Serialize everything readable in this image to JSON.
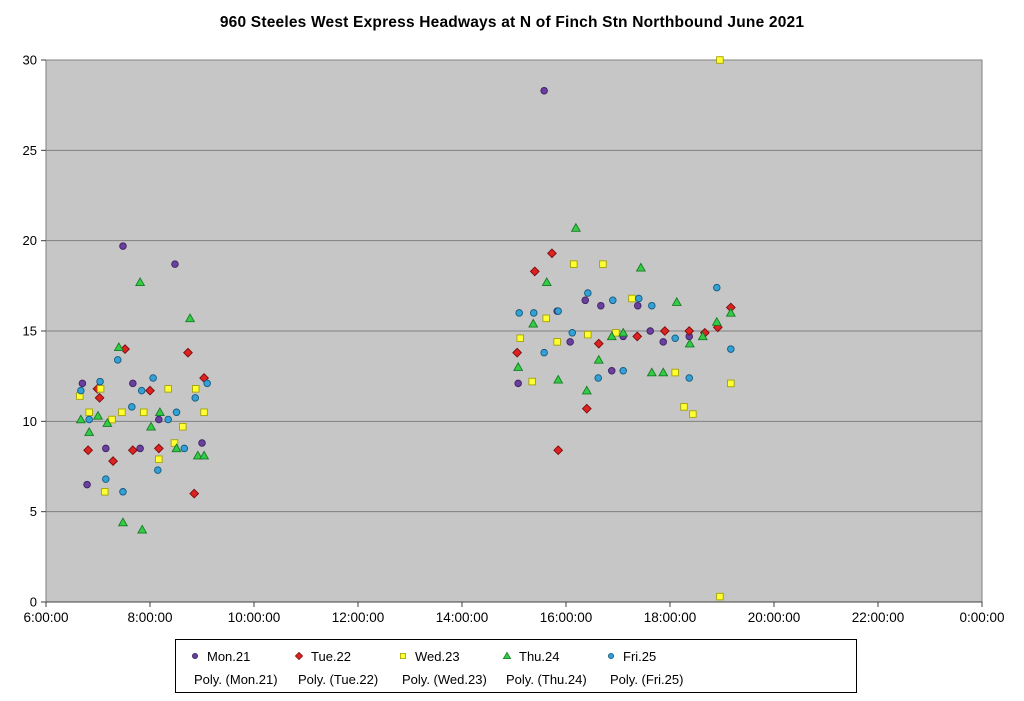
{
  "title": "960 Steeles West Express Headways at N of Finch Stn Northbound June 2021",
  "chart_data": {
    "type": "scatter",
    "title": "960 Steeles West Express Headways at N of Finch Stn Northbound June 2021",
    "xlabel": "",
    "ylabel": "",
    "x_axis": {
      "unit": "time of day",
      "min_hour": 6,
      "max_hour": 24,
      "tick_hours": [
        6,
        8,
        10,
        12,
        14,
        16,
        18,
        20,
        22,
        24
      ],
      "tick_labels": [
        "6:00:00",
        "8:00:00",
        "10:00:00",
        "12:00:00",
        "14:00:00",
        "16:00:00",
        "18:00:00",
        "20:00:00",
        "22:00:00",
        "0:00:00"
      ]
    },
    "y_axis": {
      "min": 0,
      "max": 30,
      "ticks": [
        0,
        5,
        10,
        15,
        20,
        25,
        30
      ]
    },
    "colors": {
      "plot_background": "#c6c6c6",
      "grid": "#808080",
      "border": "#808080",
      "title_text": "#000000",
      "axis_text": "#000000"
    },
    "series": [
      {
        "name": "Mon.21",
        "color": "#6a3fa0",
        "edge": "#3c2260",
        "marker": "circle",
        "points": [
          [
            6.7,
            12.1
          ],
          [
            6.79,
            6.5
          ],
          [
            7.15,
            8.5
          ],
          [
            7.48,
            19.7
          ],
          [
            7.67,
            12.1
          ],
          [
            7.81,
            8.5
          ],
          [
            8.17,
            10.1
          ],
          [
            8.48,
            18.7
          ],
          [
            9.0,
            8.8
          ],
          [
            15.08,
            12.1
          ],
          [
            15.58,
            28.3
          ],
          [
            15.83,
            16.1
          ],
          [
            16.08,
            14.4
          ],
          [
            16.37,
            16.7
          ],
          [
            16.67,
            16.4
          ],
          [
            16.88,
            12.8
          ],
          [
            17.1,
            14.7
          ],
          [
            17.38,
            16.4
          ],
          [
            17.62,
            15.0
          ],
          [
            17.87,
            14.4
          ],
          [
            18.37,
            14.7
          ]
        ]
      },
      {
        "name": "Tue.22",
        "color": "#dd2222",
        "edge": "#7a0c0c",
        "marker": "diamond",
        "points": [
          [
            6.81,
            8.4
          ],
          [
            6.99,
            11.8
          ],
          [
            7.03,
            11.3
          ],
          [
            7.29,
            7.8
          ],
          [
            7.52,
            14.0
          ],
          [
            7.67,
            8.4
          ],
          [
            8.0,
            11.7
          ],
          [
            8.17,
            8.5
          ],
          [
            8.73,
            13.8
          ],
          [
            8.85,
            6.0
          ],
          [
            9.04,
            12.4
          ],
          [
            15.06,
            13.8
          ],
          [
            15.4,
            18.3
          ],
          [
            15.73,
            19.3
          ],
          [
            15.85,
            8.4
          ],
          [
            16.4,
            10.7
          ],
          [
            16.63,
            14.3
          ],
          [
            17.37,
            14.7
          ],
          [
            17.9,
            15.0
          ],
          [
            18.37,
            15.0
          ],
          [
            18.67,
            14.9
          ],
          [
            18.92,
            15.2
          ],
          [
            19.17,
            16.3
          ]
        ]
      },
      {
        "name": "Wed.23",
        "color": "#ffff33",
        "edge": "#a3a300",
        "marker": "square",
        "points": [
          [
            6.65,
            11.4
          ],
          [
            6.83,
            10.5
          ],
          [
            7.05,
            11.8
          ],
          [
            7.13,
            6.1
          ],
          [
            7.27,
            10.1
          ],
          [
            7.46,
            10.5
          ],
          [
            7.88,
            10.5
          ],
          [
            8.17,
            7.9
          ],
          [
            8.35,
            11.8
          ],
          [
            8.47,
            8.8
          ],
          [
            8.63,
            9.7
          ],
          [
            8.88,
            11.8
          ],
          [
            9.04,
            10.5
          ],
          [
            15.12,
            14.6
          ],
          [
            15.35,
            12.2
          ],
          [
            15.62,
            15.7
          ],
          [
            15.83,
            14.4
          ],
          [
            16.15,
            18.7
          ],
          [
            16.42,
            14.8
          ],
          [
            16.71,
            18.7
          ],
          [
            16.96,
            14.9
          ],
          [
            17.27,
            16.8
          ],
          [
            18.1,
            12.7
          ],
          [
            18.27,
            10.8
          ],
          [
            18.44,
            10.4
          ],
          [
            18.96,
            30.0
          ],
          [
            18.96,
            0.3
          ],
          [
            19.17,
            12.1
          ]
        ]
      },
      {
        "name": "Thu.24",
        "color": "#33cc44",
        "edge": "#187a27",
        "marker": "triangle",
        "points": [
          [
            6.67,
            10.1
          ],
          [
            6.83,
            9.4
          ],
          [
            7.0,
            10.3
          ],
          [
            7.18,
            9.9
          ],
          [
            7.4,
            14.1
          ],
          [
            7.48,
            4.4
          ],
          [
            7.81,
            17.7
          ],
          [
            7.85,
            4.0
          ],
          [
            8.02,
            9.7
          ],
          [
            8.19,
            10.5
          ],
          [
            8.51,
            8.5
          ],
          [
            8.77,
            15.7
          ],
          [
            8.92,
            8.1
          ],
          [
            9.04,
            8.1
          ],
          [
            15.08,
            13.0
          ],
          [
            15.37,
            15.4
          ],
          [
            15.63,
            17.7
          ],
          [
            15.85,
            12.3
          ],
          [
            16.19,
            20.7
          ],
          [
            16.4,
            11.7
          ],
          [
            16.63,
            13.4
          ],
          [
            16.88,
            14.7
          ],
          [
            17.1,
            14.9
          ],
          [
            17.44,
            18.5
          ],
          [
            17.65,
            12.7
          ],
          [
            17.87,
            12.7
          ],
          [
            18.13,
            16.6
          ],
          [
            18.38,
            14.3
          ],
          [
            18.63,
            14.7
          ],
          [
            18.9,
            15.5
          ],
          [
            19.17,
            16.0
          ]
        ]
      },
      {
        "name": "Fri.25",
        "color": "#33a1d6",
        "edge": "#15597c",
        "marker": "circle",
        "points": [
          [
            6.67,
            11.7
          ],
          [
            6.83,
            10.1
          ],
          [
            7.04,
            12.2
          ],
          [
            7.15,
            6.8
          ],
          [
            7.38,
            13.4
          ],
          [
            7.48,
            6.1
          ],
          [
            7.65,
            10.8
          ],
          [
            7.84,
            11.7
          ],
          [
            8.06,
            12.4
          ],
          [
            8.15,
            7.3
          ],
          [
            8.35,
            10.1
          ],
          [
            8.51,
            10.5
          ],
          [
            8.66,
            8.5
          ],
          [
            8.87,
            11.3
          ],
          [
            9.1,
            12.1
          ],
          [
            15.1,
            16.0
          ],
          [
            15.38,
            16.0
          ],
          [
            15.58,
            13.8
          ],
          [
            15.85,
            16.1
          ],
          [
            16.12,
            14.9
          ],
          [
            16.42,
            17.1
          ],
          [
            16.62,
            12.4
          ],
          [
            16.9,
            16.7
          ],
          [
            17.1,
            12.8
          ],
          [
            17.4,
            16.8
          ],
          [
            17.65,
            16.4
          ],
          [
            18.1,
            14.6
          ],
          [
            18.37,
            12.4
          ],
          [
            18.9,
            17.4
          ],
          [
            19.17,
            14.0
          ]
        ]
      }
    ],
    "legend": {
      "position": "bottom",
      "entries": [
        "Mon.21",
        "Tue.22",
        "Wed.23",
        "Thu.24",
        "Fri.25"
      ],
      "poly_entries": [
        "Poly. (Mon.21)",
        "Poly. (Tue.22)",
        "Poly. (Wed.23)",
        "Poly. (Thu.24)",
        "Poly. (Fri.25)"
      ]
    }
  }
}
